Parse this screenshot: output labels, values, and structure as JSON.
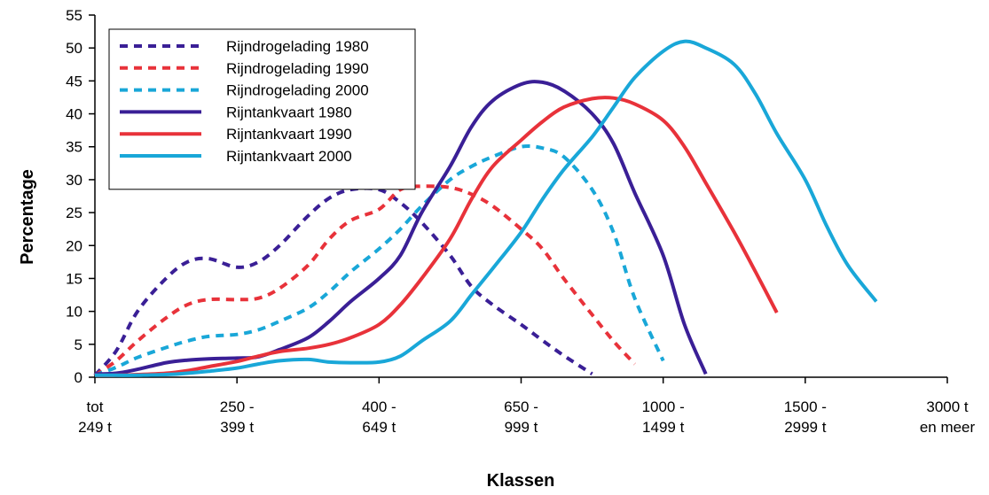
{
  "chart_data": {
    "type": "line",
    "title": "",
    "xlabel": "Klassen",
    "ylabel": "Percentage",
    "ylim": [
      0,
      55
    ],
    "yticks": [
      0,
      5,
      10,
      15,
      20,
      25,
      30,
      35,
      40,
      45,
      50,
      55
    ],
    "grid": false,
    "legend_position": "top-left",
    "categories": [
      {
        "line1": "tot",
        "line2": "249 t"
      },
      {
        "line1": "250 -",
        "line2": "399 t"
      },
      {
        "line1": "400 -",
        "line2": "649 t"
      },
      {
        "line1": "650 -",
        "line2": "999 t"
      },
      {
        "line1": "1000 -",
        "line2": "1499 t"
      },
      {
        "line1": "1500 -",
        "line2": "2999 t"
      },
      {
        "line1": "3000 t",
        "line2": "en meer"
      }
    ],
    "series": [
      {
        "name": "Rijndrogelading 1980",
        "color": "#3a1f96",
        "dashed": true,
        "points": [
          [
            0,
            0.3
          ],
          [
            0.3,
            4
          ],
          [
            0.6,
            10
          ],
          [
            1,
            15
          ],
          [
            1.3,
            17.5
          ],
          [
            1.6,
            18
          ],
          [
            2,
            16.7
          ],
          [
            2.3,
            17.5
          ],
          [
            2.6,
            20
          ],
          [
            3,
            24.5
          ],
          [
            3.3,
            27.2
          ],
          [
            3.6,
            28.5
          ],
          [
            4,
            28.5
          ],
          [
            4.3,
            26.5
          ],
          [
            4.6,
            23.5
          ],
          [
            5,
            18.5
          ],
          [
            5.3,
            13.8
          ],
          [
            5.6,
            11
          ],
          [
            6,
            8
          ],
          [
            6.3,
            5.6
          ],
          [
            6.6,
            3.3
          ],
          [
            7,
            0.5
          ]
        ]
      },
      {
        "name": "Rijndrogelading 1990",
        "color": "#e8323a",
        "dashed": true,
        "points": [
          [
            0,
            0.3
          ],
          [
            0.3,
            2.5
          ],
          [
            0.6,
            5.5
          ],
          [
            1,
            9
          ],
          [
            1.3,
            11
          ],
          [
            1.6,
            11.8
          ],
          [
            2,
            11.8
          ],
          [
            2.3,
            12
          ],
          [
            2.6,
            13.5
          ],
          [
            3,
            17
          ],
          [
            3.3,
            21
          ],
          [
            3.6,
            23.8
          ],
          [
            4,
            25.5
          ],
          [
            4.3,
            28.5
          ],
          [
            4.6,
            29
          ],
          [
            5,
            28.8
          ],
          [
            5.3,
            27.8
          ],
          [
            5.6,
            26
          ],
          [
            6,
            22.5
          ],
          [
            6.3,
            19.5
          ],
          [
            6.6,
            15
          ],
          [
            7,
            9.5
          ],
          [
            7.3,
            5.5
          ],
          [
            7.6,
            2
          ]
        ]
      },
      {
        "name": "Rijndrogelading 2000",
        "color": "#19a7d8",
        "dashed": true,
        "points": [
          [
            0,
            0.3
          ],
          [
            0.3,
            1.5
          ],
          [
            0.6,
            3
          ],
          [
            1,
            4.5
          ],
          [
            1.3,
            5.5
          ],
          [
            1.6,
            6.2
          ],
          [
            2,
            6.5
          ],
          [
            2.3,
            7.2
          ],
          [
            2.6,
            8.5
          ],
          [
            3,
            10.5
          ],
          [
            3.3,
            13
          ],
          [
            3.6,
            16
          ],
          [
            4,
            19.5
          ],
          [
            4.3,
            22.5
          ],
          [
            4.6,
            26
          ],
          [
            5,
            30
          ],
          [
            5.3,
            32
          ],
          [
            5.6,
            33.5
          ],
          [
            6,
            35
          ],
          [
            6.3,
            34.8
          ],
          [
            6.6,
            33.5
          ],
          [
            7,
            28.5
          ],
          [
            7.3,
            22
          ],
          [
            7.6,
            12
          ],
          [
            8,
            2.5
          ]
        ]
      },
      {
        "name": "Rijntankvaart 1980",
        "color": "#3a1f96",
        "dashed": false,
        "points": [
          [
            0,
            0.5
          ],
          [
            0.3,
            0.6
          ],
          [
            0.6,
            1.2
          ],
          [
            1,
            2.2
          ],
          [
            1.3,
            2.6
          ],
          [
            1.6,
            2.8
          ],
          [
            2,
            2.9
          ],
          [
            2.3,
            3.1
          ],
          [
            2.6,
            4.2
          ],
          [
            3,
            6
          ],
          [
            3.3,
            8.5
          ],
          [
            3.6,
            11.5
          ],
          [
            4,
            15
          ],
          [
            4.3,
            18.5
          ],
          [
            4.6,
            25
          ],
          [
            5,
            32
          ],
          [
            5.3,
            38
          ],
          [
            5.6,
            42
          ],
          [
            6,
            44.5
          ],
          [
            6.3,
            44.8
          ],
          [
            6.6,
            43.5
          ],
          [
            7,
            40
          ],
          [
            7.3,
            35.5
          ],
          [
            7.6,
            28
          ],
          [
            8,
            18.5
          ],
          [
            8.3,
            8
          ],
          [
            8.6,
            0.5
          ]
        ]
      },
      {
        "name": "Rijntankvaart 1990",
        "color": "#e8323a",
        "dashed": false,
        "points": [
          [
            0,
            0.3
          ],
          [
            0.3,
            0.3
          ],
          [
            0.6,
            0.4
          ],
          [
            1,
            0.6
          ],
          [
            1.3,
            1
          ],
          [
            1.6,
            1.6
          ],
          [
            2,
            2.4
          ],
          [
            2.3,
            3.2
          ],
          [
            2.6,
            3.9
          ],
          [
            3,
            4.4
          ],
          [
            3.3,
            5
          ],
          [
            3.6,
            6
          ],
          [
            4,
            8
          ],
          [
            4.3,
            11
          ],
          [
            4.6,
            15
          ],
          [
            5,
            21
          ],
          [
            5.3,
            27
          ],
          [
            5.6,
            32
          ],
          [
            6,
            36
          ],
          [
            6.3,
            38.8
          ],
          [
            6.6,
            41
          ],
          [
            7,
            42.3
          ],
          [
            7.3,
            42.4
          ],
          [
            7.6,
            41.5
          ],
          [
            8,
            39
          ],
          [
            8.3,
            35
          ],
          [
            8.6,
            29.5
          ],
          [
            9,
            22
          ],
          [
            9.3,
            16
          ],
          [
            9.6,
            9.8
          ]
        ]
      },
      {
        "name": "Rijntankvaart 2000",
        "color": "#19a7d8",
        "dashed": false,
        "points": [
          [
            0,
            0.3
          ],
          [
            0.3,
            0.3
          ],
          [
            0.6,
            0.3
          ],
          [
            1,
            0.4
          ],
          [
            1.3,
            0.6
          ],
          [
            1.6,
            0.9
          ],
          [
            2,
            1.4
          ],
          [
            2.3,
            2
          ],
          [
            2.6,
            2.5
          ],
          [
            3,
            2.7
          ],
          [
            3.3,
            2.3
          ],
          [
            3.6,
            2.2
          ],
          [
            4,
            2.3
          ],
          [
            4.3,
            3.2
          ],
          [
            4.6,
            5.5
          ],
          [
            5,
            8.5
          ],
          [
            5.3,
            12.5
          ],
          [
            5.6,
            16.5
          ],
          [
            6,
            22
          ],
          [
            6.3,
            27
          ],
          [
            6.6,
            31.5
          ],
          [
            7,
            36.5
          ],
          [
            7.3,
            41
          ],
          [
            7.6,
            45.5
          ],
          [
            8,
            49.5
          ],
          [
            8.3,
            51
          ],
          [
            8.6,
            50
          ],
          [
            9,
            47.5
          ],
          [
            9.3,
            43
          ],
          [
            9.6,
            37
          ],
          [
            10,
            30
          ],
          [
            10.3,
            23
          ],
          [
            10.6,
            17
          ],
          [
            11,
            11.5
          ]
        ]
      }
    ]
  }
}
